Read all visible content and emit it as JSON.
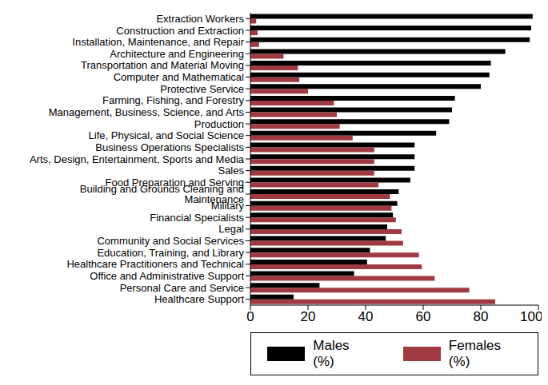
{
  "chart_data": {
    "type": "bar",
    "orientation": "horizontal",
    "categories": [
      "Extraction Workers",
      "Construction and Extraction",
      "Installation, Maintenance, and Repair",
      "Architecture and Engineering",
      "Transportation and Material Moving",
      "Computer and Mathematical",
      "Protective Service",
      "Farming, Fishing, and Forestry",
      "Management, Business, Science, and Arts",
      "Production",
      "Life, Physical, and Social Science",
      "Business Operations Specialists",
      "Arts, Design, Entertainment, Sports and Media",
      "Sales",
      "Food Preparation and Serving",
      "Building and Grounds Cleaning and Maintenance",
      "Military",
      "Financial Specialists",
      "Legal",
      "Community and Social Services",
      "Education, Training, and Library",
      "Healthcare Practitioners and Technical",
      "Office and Administrative Support",
      "Personal Care and Service",
      "Healthcare Support"
    ],
    "series": [
      {
        "name": "Males (%)",
        "color": "#000000",
        "values": [
          98,
          97.5,
          97,
          88.5,
          83.5,
          83,
          80,
          71,
          70,
          69,
          64.5,
          57,
          57,
          57,
          55.5,
          51.5,
          51,
          49.5,
          47.5,
          47,
          41.5,
          40.5,
          36,
          24,
          15
        ]
      },
      {
        "name": "Females (%)",
        "color": "#9e3a40",
        "values": [
          2,
          2.5,
          3,
          11.5,
          16.5,
          17,
          20,
          29,
          30,
          31,
          35.5,
          43,
          43,
          43,
          44.5,
          48.5,
          49,
          50.5,
          52.5,
          53,
          58.5,
          59.5,
          64,
          76,
          85
        ]
      }
    ],
    "xlim": [
      0,
      100
    ],
    "xticks": [
      0,
      20,
      40,
      60,
      80,
      100
    ],
    "grid": false,
    "legend": "bottom"
  }
}
